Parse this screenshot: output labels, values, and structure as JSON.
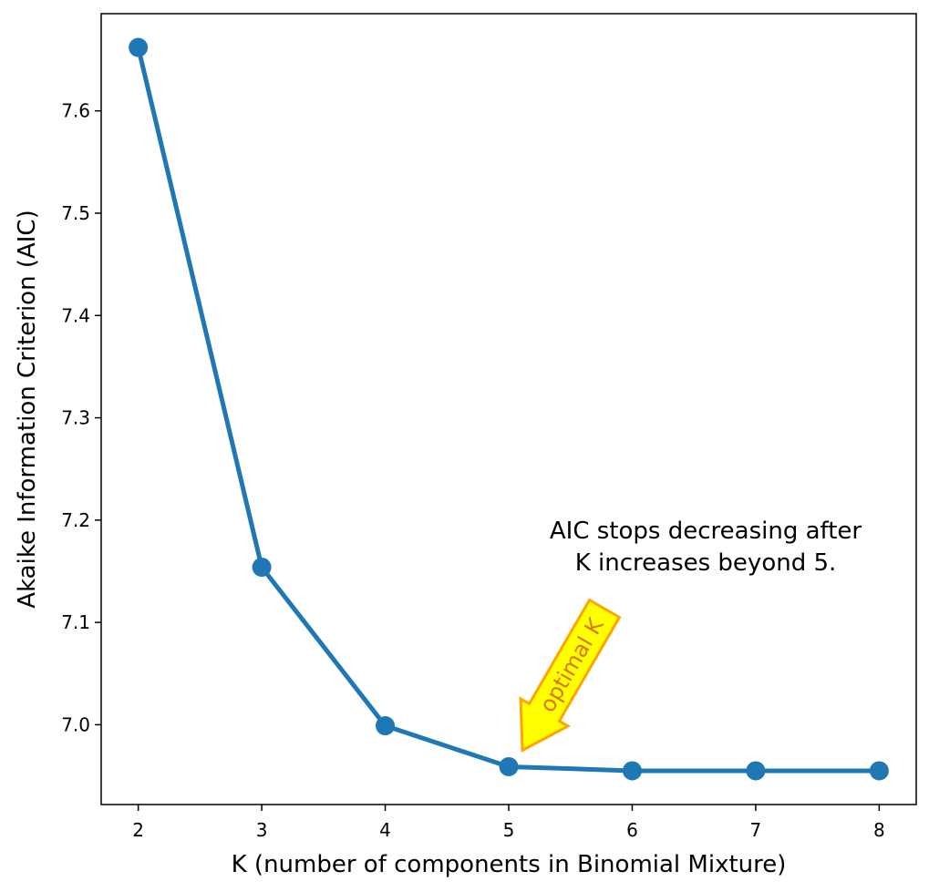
{
  "chart_data": {
    "type": "line",
    "xlabel": "K (number of components in Binomial Mixture)",
    "ylabel": "Akaike Information Criterion (AIC)",
    "x": [
      2,
      3,
      4,
      5,
      6,
      7,
      8
    ],
    "series": [
      {
        "values": [
          7.662,
          7.154,
          6.999,
          6.959,
          6.955,
          6.955,
          6.955
        ]
      }
    ],
    "xlim": [
      1.7,
      8.3
    ],
    "ylim": [
      6.922,
      7.695
    ],
    "xticks": [
      "2",
      "3",
      "4",
      "5",
      "6",
      "7",
      "8"
    ],
    "yticks": [
      "7.0",
      "7.1",
      "7.2",
      "7.3",
      "7.4",
      "7.5",
      "7.6"
    ],
    "grid": false,
    "annotations": {
      "note_lines": [
        "AIC stops decreasing after",
        "K increases beyond 5."
      ],
      "arrow_label": "optimal K",
      "arrow_target": {
        "x": 5,
        "y": 6.959
      }
    },
    "colors": {
      "series": "#1f77b4",
      "arrow_fill": "#ffff00",
      "arrow_edge": "#ffa500",
      "arrow_text": "#d9771a"
    }
  }
}
